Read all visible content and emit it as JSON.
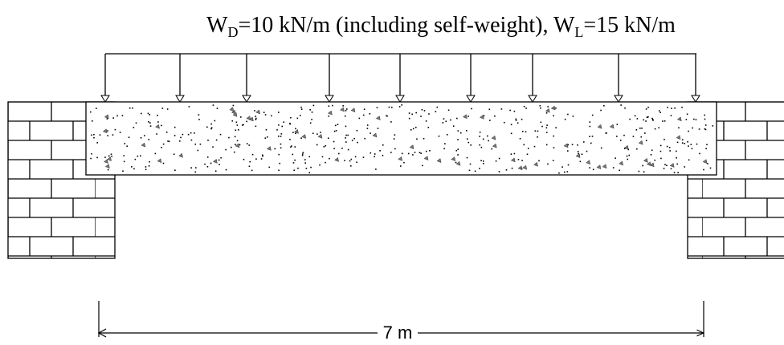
{
  "load_label": {
    "parts": [
      {
        "symbol": "W",
        "subscript": "D",
        "text": "=10 kN/m (including self-weight)"
      },
      {
        "symbol": "W",
        "subscript": "L",
        "text": "=15 kN/m"
      }
    ],
    "separator": ", "
  },
  "span_label": "7 m"
}
